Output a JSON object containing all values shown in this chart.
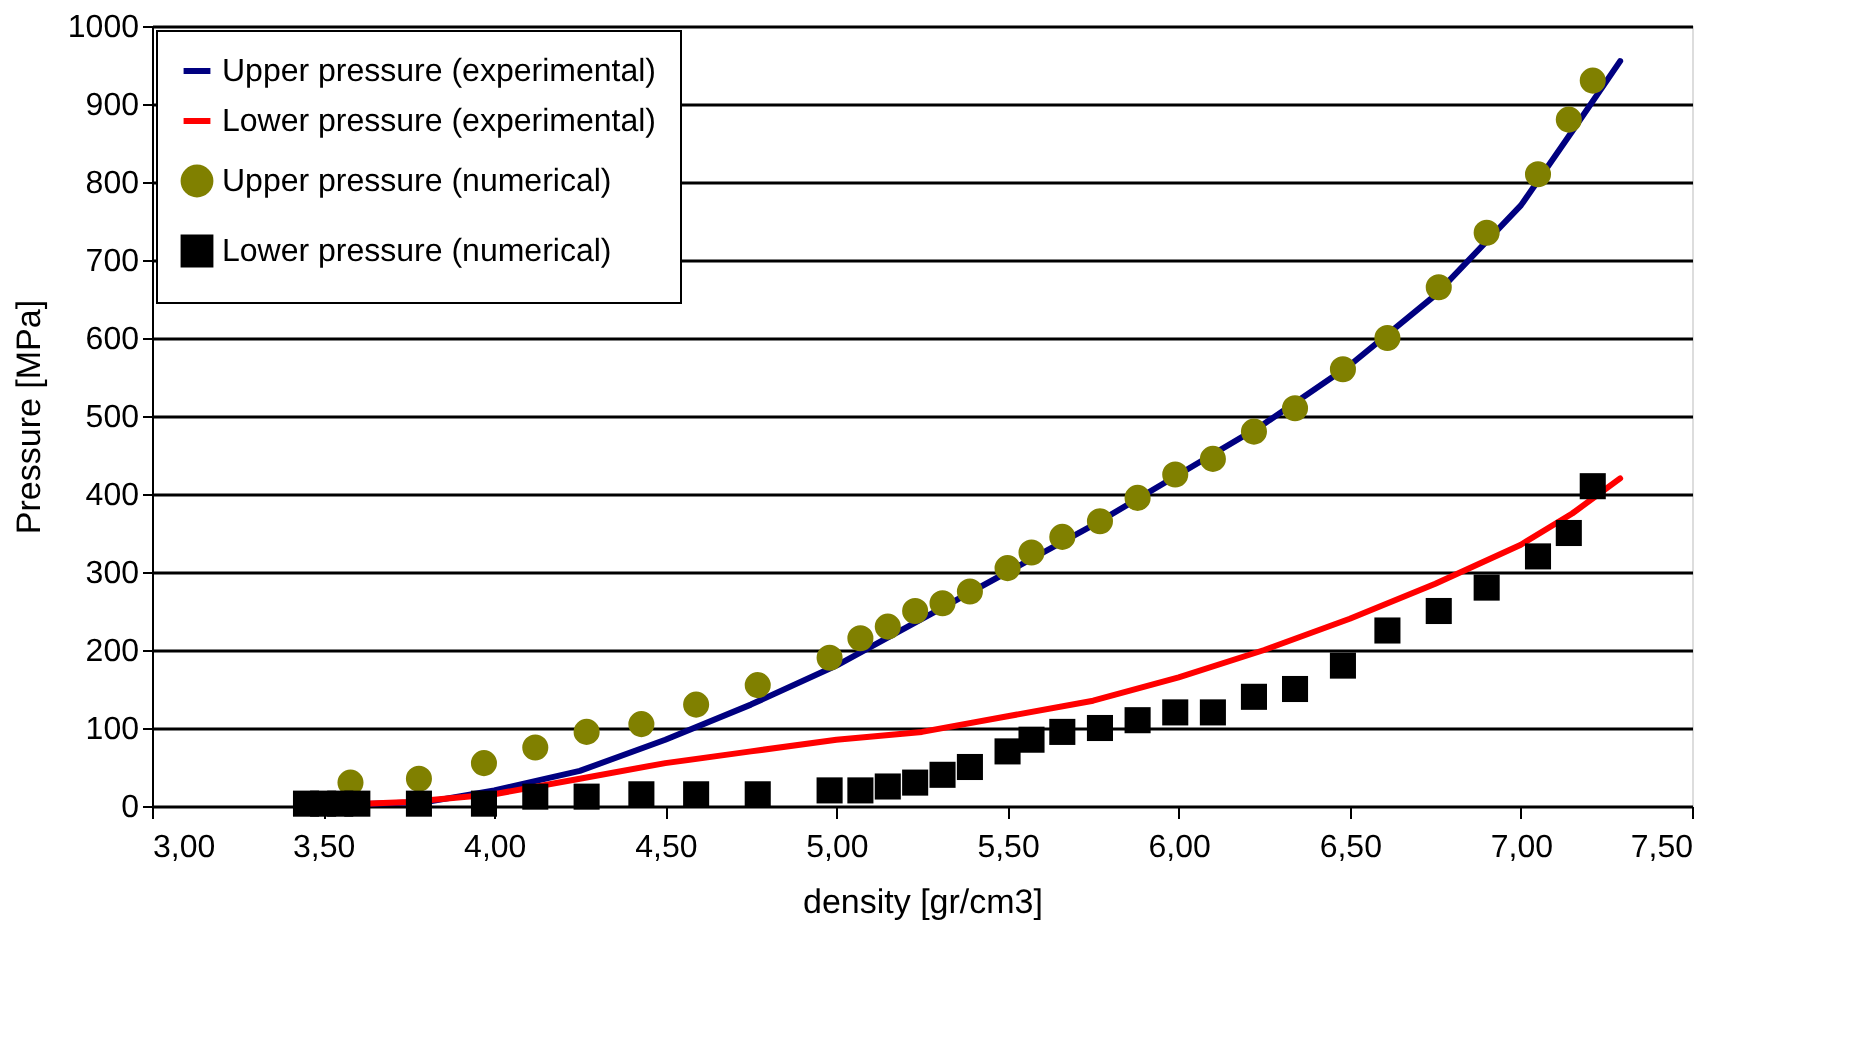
{
  "chart_data": {
    "type": "line",
    "xlabel": "density [gr/cm3]",
    "ylabel": "Pressure [MPa]",
    "xlim": [
      3.0,
      7.5
    ],
    "ylim": [
      0,
      1000
    ],
    "xticks": [
      {
        "value": 3.0,
        "label": "3,00"
      },
      {
        "value": 3.5,
        "label": "3,50"
      },
      {
        "value": 4.0,
        "label": "4,00"
      },
      {
        "value": 4.5,
        "label": "4,50"
      },
      {
        "value": 5.0,
        "label": "5,00"
      },
      {
        "value": 5.5,
        "label": "5,50"
      },
      {
        "value": 6.0,
        "label": "6,00"
      },
      {
        "value": 6.5,
        "label": "6,50"
      },
      {
        "value": 7.0,
        "label": "7,00"
      },
      {
        "value": 7.5,
        "label": "7,50"
      }
    ],
    "yticks": [
      0,
      100,
      200,
      300,
      400,
      500,
      600,
      700,
      800,
      900,
      {
        "value": 1000,
        "label": "1000"
      }
    ],
    "grid": "y",
    "legend": "top left",
    "series": [
      {
        "name": "Upper pressure (experimental)",
        "color": "#000080",
        "line_style": "solid",
        "marker": "none",
        "x": [
          3.45,
          3.8,
          4.0,
          4.25,
          4.5,
          4.75,
          5.0,
          5.25,
          5.5,
          5.75,
          6.0,
          6.25,
          6.5,
          6.75,
          7.0,
          7.15,
          7.29
        ],
        "values": [
          0,
          5,
          20,
          45,
          85,
          130,
          180,
          240,
          300,
          360,
          425,
          490,
          565,
          655,
          770,
          865,
          955
        ]
      },
      {
        "name": "Lower pressure (experimental)",
        "color": "#ff0000",
        "line_style": "solid",
        "marker": "none",
        "x": [
          3.45,
          3.75,
          4.0,
          4.25,
          4.5,
          4.75,
          5.0,
          5.25,
          5.5,
          5.75,
          6.0,
          6.25,
          6.5,
          6.75,
          7.0,
          7.15,
          7.29
        ],
        "values": [
          0,
          5,
          15,
          35,
          55,
          70,
          85,
          95,
          115,
          135,
          165,
          200,
          240,
          285,
          335,
          375,
          420
        ]
      },
      {
        "name": "Upper pressure (numerical)",
        "type": "scatter",
        "color": "#808000",
        "marker": "circle",
        "x": [
          3.58,
          3.78,
          3.97,
          4.12,
          4.27,
          4.43,
          4.59,
          4.77,
          4.98,
          5.07,
          5.15,
          5.23,
          5.31,
          5.39,
          5.5,
          5.57,
          5.66,
          5.77,
          5.88,
          5.99,
          6.1,
          6.22,
          6.34,
          6.48,
          6.61,
          6.76,
          6.9,
          7.05,
          7.14,
          7.21
        ],
        "values": [
          30,
          35,
          55,
          75,
          95,
          105,
          130,
          155,
          190,
          215,
          230,
          250,
          260,
          275,
          305,
          325,
          345,
          365,
          395,
          425,
          445,
          480,
          510,
          560,
          600,
          665,
          735,
          810,
          880,
          930
        ]
      },
      {
        "name": "Lower pressure (numerical)",
        "type": "scatter",
        "color": "#000000",
        "marker": "square",
        "x": [
          3.45,
          3.5,
          3.55,
          3.6,
          3.78,
          3.97,
          4.12,
          4.27,
          4.43,
          4.59,
          4.77,
          4.98,
          5.07,
          5.15,
          5.23,
          5.31,
          5.39,
          5.5,
          5.57,
          5.66,
          5.77,
          5.88,
          5.99,
          6.1,
          6.22,
          6.34,
          6.48,
          6.61,
          6.76,
          6.9,
          7.05,
          7.14,
          7.21
        ],
        "values": [
          3,
          3,
          3,
          3,
          3,
          3,
          12,
          12,
          15,
          15,
          15,
          20,
          20,
          25,
          30,
          40,
          50,
          70,
          85,
          95,
          100,
          110,
          120,
          120,
          140,
          150,
          180,
          225,
          250,
          280,
          320,
          350,
          410
        ]
      }
    ]
  }
}
